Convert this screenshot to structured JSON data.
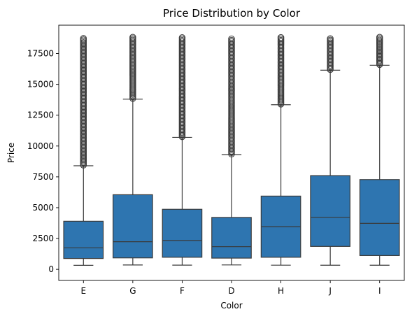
{
  "chart_data": {
    "type": "box",
    "title": "Price Distribution by Color",
    "xlabel": "Color",
    "ylabel": "Price",
    "categories": [
      "E",
      "G",
      "F",
      "D",
      "H",
      "J",
      "I"
    ],
    "ylim": [
      -900,
      19800
    ],
    "yticks": [
      0,
      2500,
      5000,
      7500,
      10000,
      12500,
      15000,
      17500
    ],
    "ytick_labels": [
      "0",
      "2500",
      "5000",
      "7500",
      "10000",
      "12500",
      "15000",
      "17500"
    ],
    "grid": false,
    "box_color": "#2e75b0",
    "line_color": "#3a3a3a",
    "boxes": [
      {
        "category": "E",
        "whisker_low": 326,
        "q1": 880,
        "median": 1740,
        "q3": 3900,
        "whisker_high": 8400,
        "outliers_low": 8450,
        "outliers_high": 18730
      },
      {
        "category": "G",
        "whisker_low": 354,
        "q1": 930,
        "median": 2240,
        "q3": 6050,
        "whisker_high": 13800,
        "outliers_low": 13850,
        "outliers_high": 18820
      },
      {
        "category": "F",
        "whisker_low": 342,
        "q1": 980,
        "median": 2340,
        "q3": 4870,
        "whisker_high": 10700,
        "outliers_low": 10750,
        "outliers_high": 18790
      },
      {
        "category": "D",
        "whisker_low": 357,
        "q1": 910,
        "median": 1840,
        "q3": 4210,
        "whisker_high": 9300,
        "outliers_low": 9350,
        "outliers_high": 18690
      },
      {
        "category": "H",
        "whisker_low": 337,
        "q1": 980,
        "median": 3460,
        "q3": 5940,
        "whisker_high": 13350,
        "outliers_low": 13400,
        "outliers_high": 18800
      },
      {
        "category": "J",
        "whisker_low": 335,
        "q1": 1860,
        "median": 4230,
        "q3": 7600,
        "whisker_high": 16150,
        "outliers_low": 16200,
        "outliers_high": 18710
      },
      {
        "category": "I",
        "whisker_low": 334,
        "q1": 1120,
        "median": 3730,
        "q3": 7280,
        "whisker_high": 16550,
        "outliers_low": 16600,
        "outliers_high": 18820
      }
    ]
  }
}
